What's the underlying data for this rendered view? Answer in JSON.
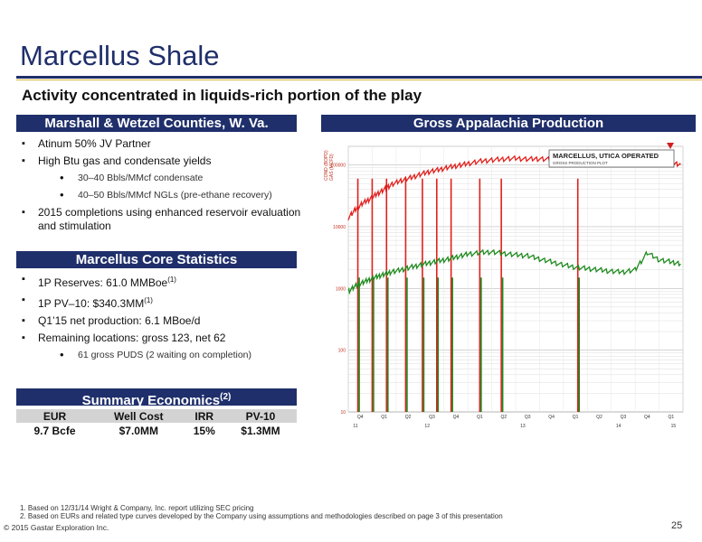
{
  "title": "Marcellus Shale",
  "subtitle": "Activity concentrated in liquids-rich portion of the play",
  "left_header": "Marshall & Wetzel Counties, W. Va.",
  "right_header": "Gross Appalachia Production",
  "bullets1": [
    {
      "text": "Atinum 50% JV Partner"
    },
    {
      "text": "High Btu gas and condensate yields"
    },
    {
      "text": "30–40 Bbls/MMcf condensate"
    },
    {
      "text": "40–50 Bbls/MMcf NGLs (pre-ethane recovery)"
    },
    {
      "text": "2015 completions using enhanced reservoir evaluation and stimulation"
    }
  ],
  "core_header": "Marcellus Core Statistics",
  "bullets2": [
    {
      "text": "1P Reserves: 61.0 MMBoe",
      "sup": "(1)"
    },
    {
      "text": "1P PV–10: $340.3MM",
      "sup": "(1)"
    },
    {
      "text": "Q1’15 net production: 6.1 MBoe/d"
    },
    {
      "text": "Remaining locations: gross 123, net 62"
    },
    {
      "text": "61 gross PUDS (2 waiting on completion)"
    }
  ],
  "econ_header": "Summary Economics",
  "econ_header_sup": "(2)",
  "econ": {
    "headers": [
      "EUR",
      "Well Cost",
      "IRR",
      "PV-10"
    ],
    "values": [
      "9.7 Bcfe",
      "$7.0MM",
      "15%",
      "$1.3MM"
    ]
  },
  "chart_data": {
    "type": "line",
    "legend_title": "MARCELLUS, UTICA OPERATED",
    "legend_subtitle": "GROSS PRODUCTION PLOT",
    "y_axis_label_1": "COND (BOPD)",
    "y_axis_label_2": "GAS (MCFD)",
    "yscale": "log",
    "y_ticks": [
      {
        "label": "100000",
        "value": 100000
      },
      {
        "label": "10000",
        "value": 10000
      },
      {
        "label": "1000",
        "value": 1000
      },
      {
        "label": "100",
        "value": 100
      },
      {
        "label": "10",
        "value": 10
      }
    ],
    "quarter_ticks": [
      "Q4",
      "Q1",
      "Q2",
      "Q3",
      "Q4",
      "Q1",
      "Q2",
      "Q3",
      "Q4",
      "Q1",
      "Q2",
      "Q3",
      "Q4",
      "Q1"
    ],
    "year_ticks": [
      "11",
      "12",
      "13",
      "14",
      "15"
    ],
    "x_range": [
      0,
      14
    ],
    "series": [
      {
        "color": "#e0201c",
        "x": [
          0,
          0.3,
          0.6,
          0.9,
          1.2,
          1.5,
          1.8,
          2.2,
          2.6,
          3.0,
          3.4,
          3.8,
          4.2,
          4.6,
          5.0,
          5.5,
          6.0,
          6.5,
          7.0,
          7.5,
          8.0,
          8.5,
          9.0,
          9.5,
          10.0,
          10.5,
          11.0,
          11.5,
          12.0,
          12.5,
          13.0,
          13.5,
          13.9
        ],
        "y": [
          14000,
          19000,
          24000,
          28000,
          34000,
          40000,
          48000,
          56000,
          62000,
          70000,
          78000,
          84000,
          92000,
          98000,
          105000,
          115000,
          120000,
          125000,
          128000,
          124000,
          126000,
          122000,
          118000,
          116000,
          120000,
          118000,
          115000,
          112000,
          116000,
          114000,
          110000,
          106000,
          102000
        ]
      },
      {
        "color": "#1d8a1d",
        "x": [
          0,
          0.3,
          0.6,
          0.9,
          1.2,
          1.5,
          1.8,
          2.2,
          2.6,
          3.0,
          3.4,
          3.8,
          4.2,
          4.6,
          5.0,
          5.5,
          6.0,
          6.5,
          7.0,
          7.5,
          8.0,
          8.5,
          9.0,
          9.5,
          10.0,
          10.5,
          11.0,
          11.5,
          12.0,
          12.5,
          13.0,
          13.5,
          13.9
        ],
        "y": [
          900,
          1100,
          1250,
          1400,
          1550,
          1700,
          1850,
          2000,
          2200,
          2400,
          2600,
          2800,
          3000,
          3300,
          3600,
          3800,
          3900,
          3700,
          3500,
          3400,
          3000,
          2700,
          2400,
          2200,
          2100,
          2000,
          1900,
          1850,
          2000,
          3800,
          2900,
          2700,
          2500
        ]
      }
    ],
    "dips": [
      0.4,
      1.0,
      1.6,
      2.4,
      3.1,
      3.7,
      4.3,
      5.5,
      6.4,
      9.6
    ]
  },
  "footnotes": [
    "1.   Based on 12/31/14 Wright & Company, Inc. report utilizing SEC pricing",
    "2.   Based on EURs and related type curves developed by the Company using assumptions and methodologies described on page 3 of this presentation"
  ],
  "copyright": "© 2015 Gastar Exploration Inc.",
  "page_number": "25",
  "colors": {
    "navy": "#1f2f6b",
    "gold": "#d9b53b",
    "gas": "#e0201c",
    "cond": "#1d8a1d"
  }
}
